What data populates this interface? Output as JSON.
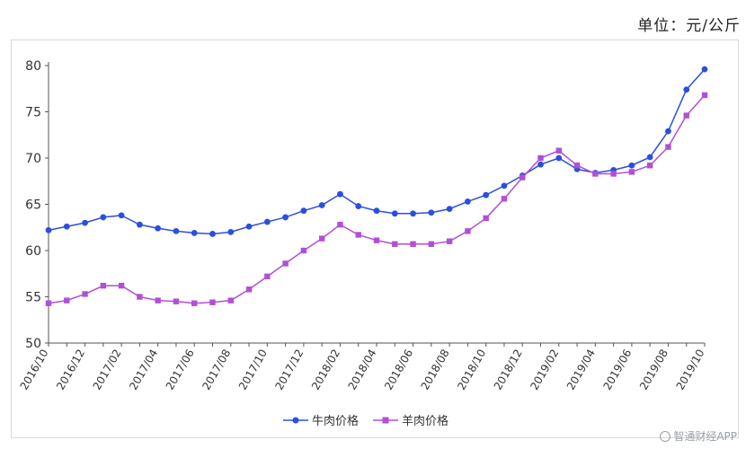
{
  "unit_label": "单位：元/公斤",
  "watermark": "智通财经APP",
  "colors": {
    "beef": "#2b4ee0",
    "mutton": "#b14fd6",
    "axis": "#555555",
    "text": "#333333"
  },
  "chart_data": {
    "type": "line",
    "title": "",
    "xlabel": "",
    "ylabel": "",
    "ylim": [
      50,
      80
    ],
    "yticks": [
      50,
      55,
      60,
      65,
      70,
      75,
      80
    ],
    "grid": false,
    "legend_position": "bottom",
    "x": [
      "2016/10",
      "2016/11",
      "2016/12",
      "2017/01",
      "2017/02",
      "2017/03",
      "2017/04",
      "2017/05",
      "2017/06",
      "2017/07",
      "2017/08",
      "2017/09",
      "2017/10",
      "2017/11",
      "2017/12",
      "2018/01",
      "2018/02",
      "2018/03",
      "2018/04",
      "2018/05",
      "2018/06",
      "2018/07",
      "2018/08",
      "2018/09",
      "2018/10",
      "2018/11",
      "2018/12",
      "2019/01",
      "2019/02",
      "2019/03",
      "2019/04",
      "2019/05",
      "2019/06",
      "2019/07",
      "2019/08",
      "2019/09",
      "2019/10"
    ],
    "x_tick_labels": [
      "2016/10",
      "2016/12",
      "2017/02",
      "2017/04",
      "2017/06",
      "2017/08",
      "2017/10",
      "2017/12",
      "2018/02",
      "2018/04",
      "2018/06",
      "2018/08",
      "2018/10",
      "2018/12",
      "2019/02",
      "2019/04",
      "2019/06",
      "2019/08",
      "2019/10"
    ],
    "series": [
      {
        "name": "牛肉价格",
        "color": "#2b4ee0",
        "marker": "circle",
        "values": [
          62.2,
          62.6,
          63.0,
          63.6,
          63.8,
          62.8,
          62.4,
          62.1,
          61.9,
          61.8,
          62.0,
          62.6,
          63.1,
          63.6,
          64.3,
          64.9,
          66.1,
          64.8,
          64.3,
          64.0,
          64.0,
          64.1,
          64.5,
          65.3,
          66.0,
          67.0,
          68.1,
          69.3,
          70.0,
          68.8,
          68.4,
          68.7,
          69.2,
          70.1,
          72.9,
          77.4,
          79.6
        ]
      },
      {
        "name": "羊肉价格",
        "color": "#b14fd6",
        "marker": "square",
        "values": [
          54.3,
          54.6,
          55.3,
          56.2,
          56.2,
          55.0,
          54.6,
          54.5,
          54.3,
          54.4,
          54.6,
          55.8,
          57.2,
          58.6,
          60.0,
          61.3,
          62.8,
          61.7,
          61.1,
          60.7,
          60.7,
          60.7,
          61.0,
          62.1,
          63.5,
          65.6,
          67.9,
          70.0,
          70.8,
          69.2,
          68.3,
          68.3,
          68.5,
          69.2,
          71.2,
          74.6,
          76.8
        ]
      }
    ]
  }
}
